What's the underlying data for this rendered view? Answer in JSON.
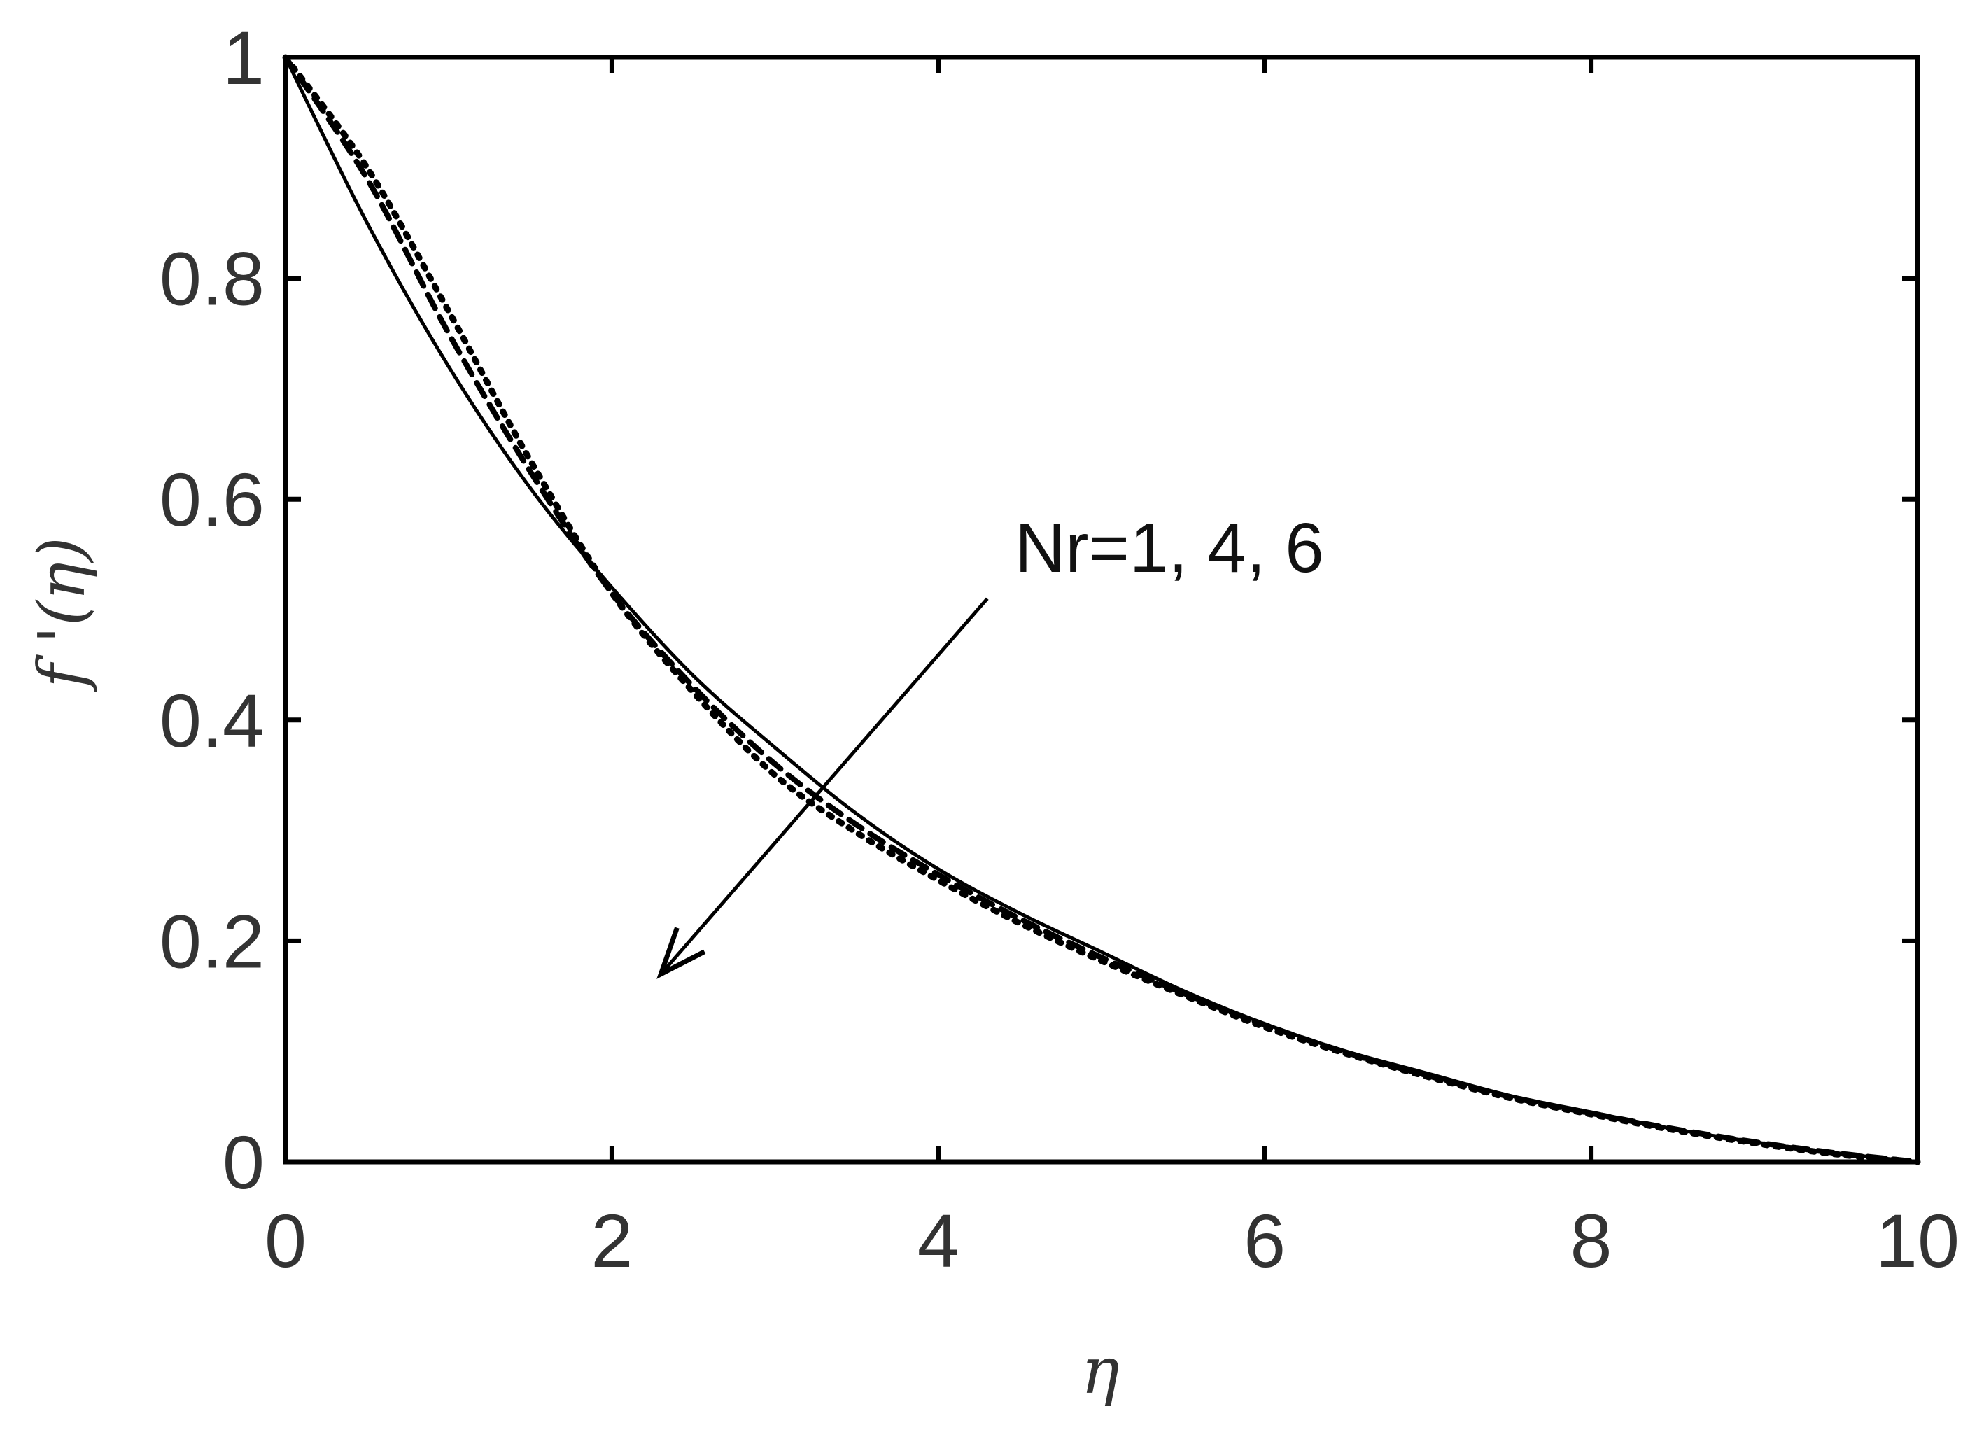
{
  "chart_data": {
    "type": "line",
    "title": "",
    "xlabel": "η",
    "ylabel": "f '(η)",
    "xlim": [
      0,
      10
    ],
    "ylim": [
      0,
      1
    ],
    "xticks": [
      "0",
      "2",
      "4",
      "6",
      "8",
      "10"
    ],
    "yticks": [
      "0",
      "0.2",
      "0.4",
      "0.6",
      "0.8",
      "1"
    ],
    "grid": false,
    "legend": "none",
    "annotation": {
      "text": "Nr=1, 4, 6",
      "arrow_from": [
        4.3,
        0.51
      ],
      "arrow_to": [
        2.3,
        0.17
      ]
    },
    "x": [
      0,
      0.5,
      1,
      1.5,
      2,
      2.5,
      3,
      3.5,
      4,
      4.5,
      5,
      5.5,
      6,
      6.5,
      7,
      7.5,
      8,
      8.5,
      9,
      9.5,
      10
    ],
    "series": [
      {
        "style": "solid",
        "values": [
          1.0,
          0.85,
          0.72,
          0.61,
          0.52,
          0.44,
          0.375,
          0.315,
          0.265,
          0.225,
          0.19,
          0.155,
          0.125,
          0.1,
          0.08,
          0.06,
          0.045,
          0.03,
          0.018,
          0.008,
          0.0
        ]
      },
      {
        "style": "dashed",
        "values": [
          1.0,
          0.89,
          0.75,
          0.625,
          0.515,
          0.43,
          0.36,
          0.305,
          0.26,
          0.22,
          0.185,
          0.153,
          0.124,
          0.099,
          0.078,
          0.059,
          0.044,
          0.03,
          0.018,
          0.008,
          0.0
        ]
      },
      {
        "style": "dotted",
        "values": [
          1.0,
          0.9,
          0.77,
          0.635,
          0.515,
          0.425,
          0.35,
          0.298,
          0.255,
          0.216,
          0.182,
          0.151,
          0.122,
          0.098,
          0.077,
          0.058,
          0.043,
          0.029,
          0.017,
          0.007,
          0.0
        ]
      }
    ],
    "color": "#000000"
  }
}
